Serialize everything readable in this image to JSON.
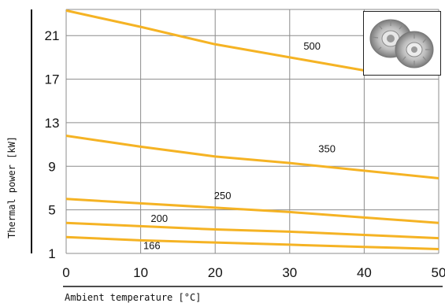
{
  "chart_data": {
    "type": "line",
    "xlabel": "Ambient temperature [°C]",
    "ylabel": "Thermal power [kW]",
    "x_ticks": [
      "0",
      "10",
      "20",
      "30",
      "40",
      "50"
    ],
    "y_ticks": [
      "1",
      "5",
      "9",
      "13",
      "17",
      "21"
    ],
    "xlim": [
      0,
      50
    ],
    "ylim": [
      1,
      23.4
    ],
    "grid": true,
    "line_color": "#f5b324",
    "series": [
      {
        "name": "500",
        "x": [
          0,
          10,
          20,
          30,
          40
        ],
        "y": [
          23.3,
          21.8,
          20.2,
          19.0,
          17.8
        ]
      },
      {
        "name": "350",
        "x": [
          0,
          10,
          20,
          30,
          40,
          50
        ],
        "y": [
          11.8,
          10.8,
          9.9,
          9.3,
          8.6,
          7.9
        ]
      },
      {
        "name": "250",
        "x": [
          0,
          10,
          20,
          30,
          40,
          50
        ],
        "y": [
          6.0,
          5.6,
          5.2,
          4.8,
          4.3,
          3.8
        ]
      },
      {
        "name": "200",
        "x": [
          0,
          10,
          20,
          30,
          40,
          50
        ],
        "y": [
          3.8,
          3.5,
          3.2,
          3.0,
          2.7,
          2.4
        ]
      },
      {
        "name": "166",
        "x": [
          0,
          10,
          20,
          30,
          40,
          50
        ],
        "y": [
          2.5,
          2.2,
          2.0,
          1.8,
          1.6,
          1.4
        ]
      }
    ],
    "inset_image": "coupling-product-photo"
  }
}
